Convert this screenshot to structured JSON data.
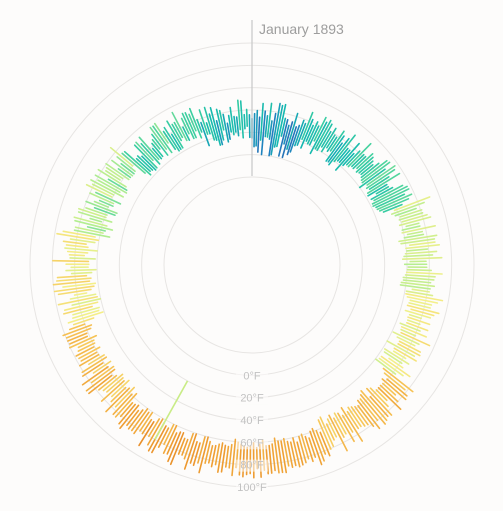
{
  "chart_data": {
    "type": "radial-range",
    "current_label": "January 1893",
    "unit": "°F",
    "radial_ticks": [
      {
        "value": 0,
        "label": "0°F"
      },
      {
        "value": 20,
        "label": "20°F"
      },
      {
        "value": 40,
        "label": "40°F"
      },
      {
        "value": 60,
        "label": "60°F"
      },
      {
        "value": 80,
        "label": "80°F"
      },
      {
        "value": 100,
        "label": "100°F"
      }
    ],
    "radial_range": [
      -20,
      100
    ],
    "grid": true,
    "color_scale": [
      "#4b3f95",
      "#1f7fbf",
      "#14b8b0",
      "#3ccfa0",
      "#b4ee90",
      "#f4f08a",
      "#f7c85a",
      "#ef9f33",
      "#e07a1f"
    ],
    "days_per_year": 365,
    "series": [
      {
        "day_from": 1,
        "day_to": 20,
        "low_min": 0,
        "low_max": 20,
        "high_min": 30,
        "high_max": 48
      },
      {
        "day_from": 21,
        "day_to": 45,
        "low_min": 14,
        "low_max": 26,
        "high_min": 36,
        "high_max": 50
      },
      {
        "day_from": 46,
        "day_to": 70,
        "low_min": 20,
        "low_max": 30,
        "high_min": 40,
        "high_max": 58
      },
      {
        "day_from": 71,
        "day_to": 100,
        "low_min": 34,
        "low_max": 44,
        "high_min": 55,
        "high_max": 72
      },
      {
        "day_from": 101,
        "day_to": 130,
        "low_min": 40,
        "low_max": 50,
        "high_min": 60,
        "high_max": 76
      },
      {
        "day_from": 131,
        "day_to": 160,
        "low_min": 50,
        "low_max": 60,
        "high_min": 72,
        "high_max": 88
      },
      {
        "day_from": 161,
        "day_to": 190,
        "low_min": 57,
        "low_max": 65,
        "high_min": 80,
        "high_max": 92
      },
      {
        "day_from": 191,
        "day_to": 225,
        "low_min": 60,
        "low_max": 68,
        "high_min": 80,
        "high_max": 94
      },
      {
        "day_from": 226,
        "day_to": 255,
        "low_min": 52,
        "low_max": 62,
        "high_min": 72,
        "high_max": 88
      },
      {
        "day_from": 256,
        "day_to": 285,
        "low_min": 40,
        "low_max": 52,
        "high_min": 62,
        "high_max": 80
      },
      {
        "day_from": 286,
        "day_to": 315,
        "low_min": 30,
        "low_max": 42,
        "high_min": 48,
        "high_max": 66
      },
      {
        "day_from": 316,
        "day_to": 345,
        "low_min": 22,
        "low_max": 34,
        "high_min": 38,
        "high_max": 56
      },
      {
        "day_from": 346,
        "day_to": 365,
        "low_min": 12,
        "low_max": 26,
        "high_min": 30,
        "high_max": 50
      }
    ],
    "outlier": {
      "day": 213,
      "low": 20,
      "high": 80
    }
  }
}
